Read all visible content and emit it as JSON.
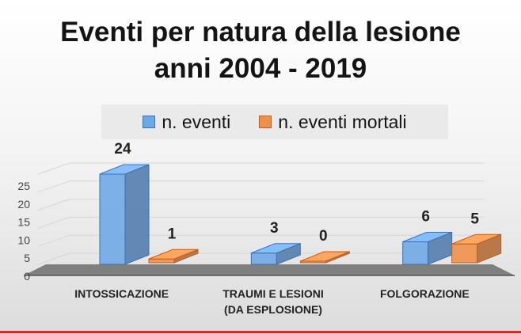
{
  "chart_data": {
    "type": "bar",
    "title": [
      "Eventi per natura della lesione",
      "anni 2004 - 2019"
    ],
    "categories": [
      [
        "INTOSSICAZIONE"
      ],
      [
        "TRAUMI E LESIONI",
        "(DA ESPLOSIONE)"
      ],
      [
        "FOLGORAZIONE"
      ]
    ],
    "series": [
      {
        "name": "n. eventi",
        "values": [
          24,
          3,
          6
        ],
        "color": "#6fa8e6",
        "edge": "#3a72b4"
      },
      {
        "name": "n. eventi mortali",
        "values": [
          1,
          0,
          5
        ],
        "color": "#f0904a",
        "edge": "#c05e1c"
      }
    ],
    "ylim": [
      0,
      25
    ],
    "yticks": [
      0,
      5,
      10,
      15,
      20,
      25
    ],
    "grid": true,
    "legend_position": "top"
  }
}
